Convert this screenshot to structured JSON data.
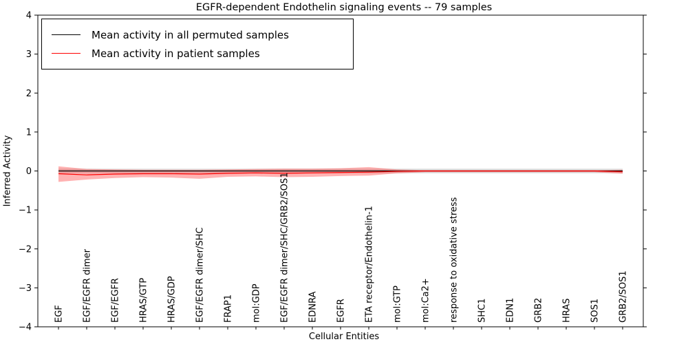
{
  "chart_data": {
    "type": "line",
    "title": "EGFR-dependent Endothelin signaling events -- 79 samples",
    "xlabel": "Cellular Entities",
    "ylabel": "Inferred Activity",
    "ylim": [
      -4,
      4
    ],
    "yticks": [
      -4,
      -3,
      -2,
      -1,
      0,
      1,
      2,
      3,
      4
    ],
    "ytick_labels": [
      "−4",
      "−3",
      "−2",
      "−1",
      "0",
      "1",
      "2",
      "3",
      "4"
    ],
    "grid": false,
    "legend_position": "upper left",
    "categories": [
      "EGF",
      "EGF/EGFR dimer",
      "EGF/EGFR",
      "HRAS/GTP",
      "HRAS/GDP",
      "EGF/EGFR dimer/SHC",
      "FRAP1",
      "mol:GDP",
      "EGF/EGFR dimer/SHC/GRB2/SOS1",
      "EDNRA",
      "EGFR",
      "ETA receptor/Endothelin-1",
      "mol:GTP",
      "mol:Ca2+",
      "response to oxidative stress",
      "SHC1",
      "EDN1",
      "GRB2",
      "HRAS",
      "SOS1",
      "GRB2/SOS1"
    ],
    "series": [
      {
        "name": "Mean activity in all permuted samples",
        "color": "#000000",
        "values": [
          0,
          0,
          0,
          0,
          0,
          0,
          0,
          0,
          0,
          0,
          0,
          0,
          0,
          0,
          0,
          0,
          0,
          0,
          0,
          0,
          0
        ]
      },
      {
        "name": "Mean activity in patient samples",
        "color": "#ff0000",
        "values": [
          -0.07,
          -0.1,
          -0.08,
          -0.07,
          -0.07,
          -0.08,
          -0.06,
          -0.05,
          -0.06,
          -0.05,
          -0.04,
          -0.03,
          -0.01,
          0,
          0,
          0,
          0,
          0,
          0,
          0,
          -0.02
        ]
      }
    ],
    "bands": [
      {
        "series": "Mean activity in all permuted samples",
        "color": "#000000",
        "opacity": 0.13,
        "upper": [
          0.06,
          0.06,
          0.06,
          0.06,
          0.06,
          0.06,
          0.06,
          0.06,
          0.06,
          0.06,
          0.06,
          0.06,
          0.06,
          0.06,
          0.06,
          0.06,
          0.06,
          0.06,
          0.06,
          0.06,
          0.06
        ],
        "lower": [
          -0.06,
          -0.06,
          -0.06,
          -0.06,
          -0.06,
          -0.06,
          -0.06,
          -0.06,
          -0.06,
          -0.06,
          -0.06,
          -0.06,
          -0.06,
          -0.06,
          -0.06,
          -0.06,
          -0.06,
          -0.06,
          -0.06,
          -0.06,
          -0.06
        ]
      },
      {
        "series": "Mean activity in patient samples",
        "color": "#ff0000",
        "opacity": 0.3,
        "upper": [
          0.12,
          0.05,
          0.04,
          0.03,
          0.03,
          0.03,
          0.04,
          0.05,
          0.06,
          0.06,
          0.07,
          0.1,
          0.04,
          0.02,
          0.02,
          0.02,
          0.02,
          0.02,
          0.02,
          0.02,
          0.03
        ],
        "lower": [
          -0.28,
          -0.22,
          -0.18,
          -0.16,
          -0.17,
          -0.2,
          -0.15,
          -0.14,
          -0.16,
          -0.15,
          -0.13,
          -0.12,
          -0.06,
          -0.03,
          -0.03,
          -0.03,
          -0.03,
          -0.03,
          -0.03,
          -0.03,
          -0.07
        ]
      }
    ]
  }
}
